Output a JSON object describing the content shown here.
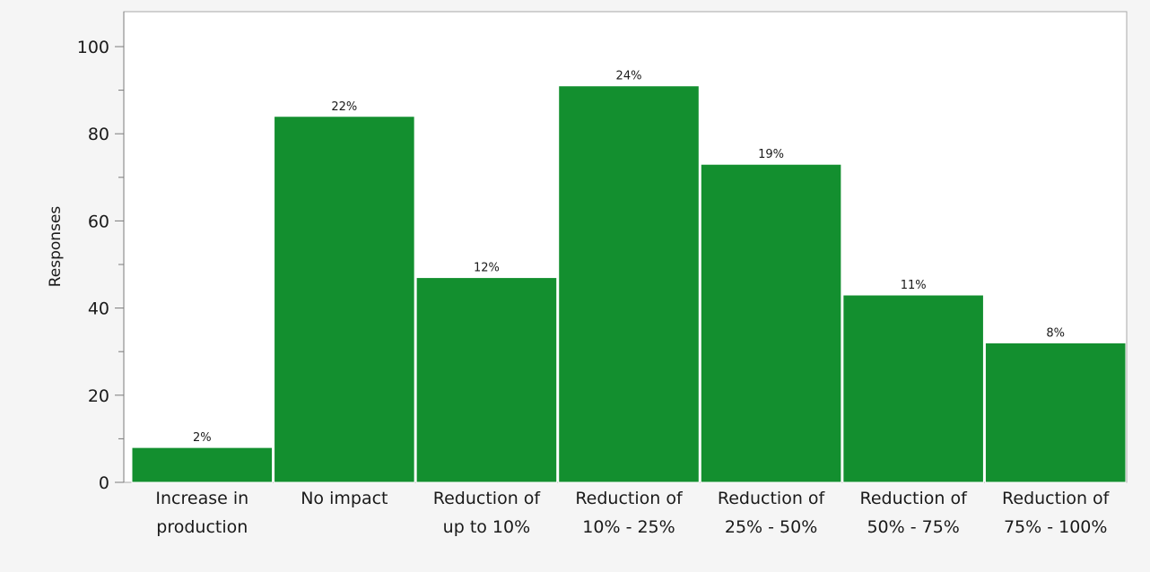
{
  "chart_data": {
    "type": "bar",
    "title": "",
    "xlabel": "",
    "ylabel": "Responses",
    "ylim": [
      0,
      100
    ],
    "yticks": [
      0,
      20,
      40,
      60,
      80,
      100
    ],
    "grid": false,
    "bar_color": "#138f2f",
    "categories": [
      [
        "Increase in",
        "production"
      ],
      [
        "No impact"
      ],
      [
        "Reduction of",
        "up to 10%"
      ],
      [
        "Reduction of",
        "10% - 25%"
      ],
      [
        "Reduction of",
        "25% - 50%"
      ],
      [
        "Reduction of",
        "50% - 75%"
      ],
      [
        "Reduction of",
        "75% - 100%"
      ]
    ],
    "values": [
      8,
      84,
      47,
      91,
      73,
      43,
      32
    ],
    "data_labels": [
      "2%",
      "22%",
      "12%",
      "24%",
      "19%",
      "11%",
      "8%"
    ]
  }
}
